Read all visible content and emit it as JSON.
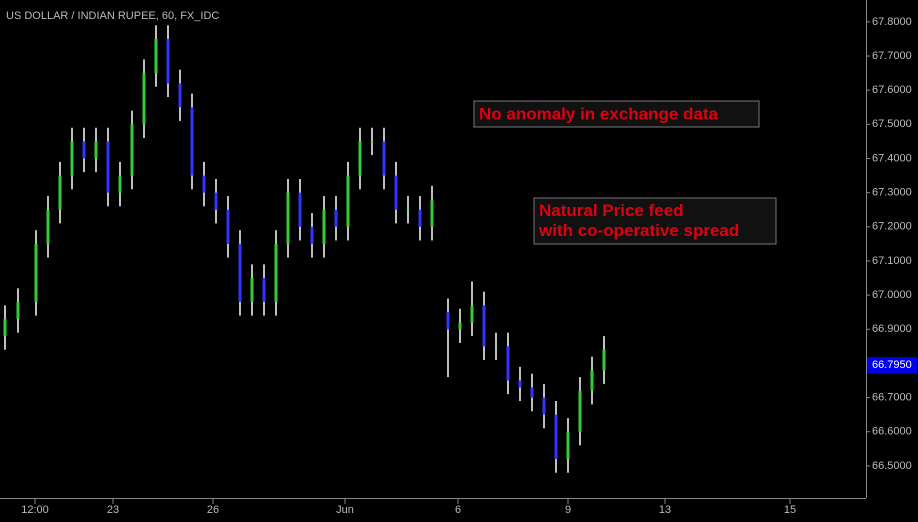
{
  "chart_data": {
    "type": "ohlc",
    "title": "US DOLLAR / INDIAN RUPEE, 60, FX_IDC",
    "annotations": [
      "No anomaly in exchange data",
      "Natural Price feed\nwith co-operative spread"
    ],
    "up_color": "#33cc33",
    "down_color": "#3333ff",
    "wick_color": "#ffffff",
    "xlim": [
      0,
      216.5
    ],
    "xticks": [
      {
        "value": 8.75,
        "label": "12:00"
      },
      {
        "value": 28.25,
        "label": "23"
      },
      {
        "value": 53.25,
        "label": "26"
      },
      {
        "value": 86.25,
        "label": "Jun"
      },
      {
        "value": 114.5,
        "label": "6"
      },
      {
        "value": 142,
        "label": "9"
      },
      {
        "value": 166.25,
        "label": "13"
      },
      {
        "value": 197.5,
        "label": "15"
      }
    ],
    "ylim": [
      66.406,
      67.864
    ],
    "yticks": [
      {
        "value": 66.5,
        "label": "66.5000"
      },
      {
        "value": 66.6,
        "label": "66.6000"
      },
      {
        "value": 66.7,
        "label": "66.7000"
      },
      {
        "value": 66.8,
        "label": "66.8000"
      },
      {
        "value": 66.9,
        "label": "66.9000"
      },
      {
        "value": 67.0,
        "label": "67.0000"
      },
      {
        "value": 67.1,
        "label": "67.1000"
      },
      {
        "value": 67.2,
        "label": "67.2000"
      },
      {
        "value": 67.3,
        "label": "67.3000"
      },
      {
        "value": 67.4,
        "label": "67.4000"
      },
      {
        "value": 67.5,
        "label": "67.5000"
      },
      {
        "value": 67.6,
        "label": "67.6000"
      },
      {
        "value": 67.7,
        "label": "67.7000"
      },
      {
        "value": 67.8,
        "label": "67.8000"
      }
    ],
    "last_price": {
      "value": 66.795,
      "label": "66.7950"
    },
    "x": [
      1.25,
      4.5,
      9,
      12,
      15,
      18,
      21,
      24,
      27,
      30,
      33,
      36,
      39,
      42,
      45,
      48,
      51,
      54,
      57,
      60,
      63,
      66,
      69,
      72,
      75,
      78,
      81,
      84,
      87,
      90,
      93,
      96,
      99,
      102,
      105,
      108,
      112,
      115,
      118,
      121,
      124,
      127,
      130,
      133,
      136,
      139,
      142,
      145,
      148,
      151
    ],
    "open": [
      66.88,
      66.93,
      66.98,
      67.15,
      67.25,
      67.35,
      67.45,
      67.4,
      67.45,
      67.3,
      67.35,
      67.5,
      67.65,
      67.75,
      67.62,
      67.55,
      67.35,
      67.3,
      67.25,
      67.15,
      66.98,
      67.05,
      66.98,
      67.15,
      67.3,
      67.2,
      67.15,
      67.25,
      67.2,
      67.35,
      67.45,
      67.45,
      67.35,
      67.25,
      67.25,
      67.2,
      66.95,
      66.9,
      66.92,
      66.97,
      66.85,
      66.85,
      66.75,
      66.73,
      66.7,
      66.65,
      66.52,
      66.6,
      66.72,
      66.78
    ],
    "high": [
      66.97,
      67.02,
      67.19,
      67.29,
      67.39,
      67.49,
      67.49,
      67.49,
      67.49,
      67.39,
      67.54,
      67.69,
      67.79,
      67.79,
      67.66,
      67.59,
      67.39,
      67.34,
      67.29,
      67.19,
      67.09,
      67.09,
      67.19,
      67.34,
      67.34,
      67.24,
      67.29,
      67.29,
      67.39,
      67.49,
      67.49,
      67.49,
      67.39,
      67.29,
      67.29,
      67.32,
      66.99,
      66.96,
      67.04,
      67.01,
      66.89,
      66.89,
      66.79,
      66.77,
      66.74,
      66.69,
      66.64,
      66.76,
      66.82,
      66.88
    ],
    "low": [
      66.84,
      66.89,
      66.94,
      67.11,
      67.21,
      67.31,
      67.36,
      67.36,
      67.26,
      67.26,
      67.31,
      67.46,
      67.61,
      67.58,
      67.51,
      67.31,
      67.26,
      67.21,
      67.11,
      66.94,
      66.94,
      66.94,
      66.94,
      67.11,
      67.16,
      67.11,
      67.11,
      67.16,
      67.16,
      67.31,
      67.41,
      67.31,
      67.21,
      67.21,
      67.16,
      67.16,
      66.76,
      66.86,
      66.88,
      66.81,
      66.81,
      66.71,
      66.69,
      66.66,
      66.61,
      66.48,
      66.48,
      66.56,
      66.68,
      66.74
    ],
    "close": [
      66.93,
      66.98,
      67.15,
      67.25,
      67.35,
      67.45,
      67.4,
      67.45,
      67.3,
      67.35,
      67.5,
      67.65,
      67.75,
      67.62,
      67.55,
      67.35,
      67.3,
      67.25,
      67.15,
      66.98,
      67.05,
      66.98,
      67.15,
      67.3,
      67.2,
      67.15,
      67.25,
      67.2,
      67.35,
      67.45,
      67.45,
      67.35,
      67.25,
      67.25,
      67.2,
      67.28,
      66.9,
      66.92,
      66.97,
      66.85,
      66.85,
      66.75,
      66.73,
      66.7,
      66.65,
      66.52,
      66.6,
      66.72,
      66.78,
      66.84
    ]
  }
}
